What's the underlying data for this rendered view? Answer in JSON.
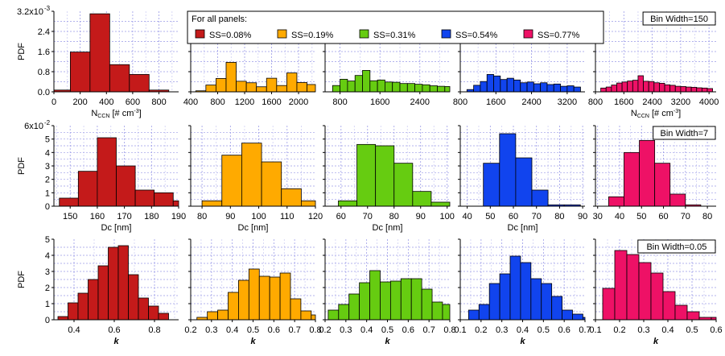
{
  "legend": {
    "title": "For all panels:",
    "items": [
      {
        "label": "SS=0.08%",
        "color": "#c41a1a"
      },
      {
        "label": "SS=0.19%",
        "color": "#ffaa00"
      },
      {
        "label": "SS=0.31%",
        "color": "#66cc11"
      },
      {
        "label": "SS=0.54%",
        "color": "#1144ee"
      },
      {
        "label": "SS=0.77%",
        "color": "#ee1166"
      }
    ]
  },
  "chart_data": [
    {
      "row": "Nccn",
      "type": "bar",
      "ylabel": "PDF",
      "ytick_labels": [
        "0.0",
        "0.8",
        "1.6",
        "2.4",
        "3.2x10"
      ],
      "y_exponent": "-3",
      "ylim": [
        0,
        0.0032
      ],
      "yticks": [
        0,
        0.0008,
        0.0016,
        0.0024,
        0.0032
      ],
      "annotation": "Bin Width=150",
      "annotation_panel": 4,
      "bin_width": 150,
      "xlabel": {
        "main": "N",
        "sub": "CCN",
        "unit": " [# cm",
        "sup": "-3",
        "close": "]"
      },
      "xlabel_panels": [
        0,
        4
      ],
      "panels": [
        {
          "series": "SS=0.08%",
          "color": "#c41a1a",
          "xlim": [
            0,
            950
          ],
          "xticks": [
            0,
            200,
            400,
            600,
            800
          ],
          "bin_start": -25,
          "values": [
            7e-05,
            0.00158,
            0.0031,
            0.00108,
            0.00069,
            7e-05
          ]
        },
        {
          "series": "SS=0.19%",
          "color": "#ffaa00",
          "xlim": [
            400,
            2250
          ],
          "xticks": [
            400,
            800,
            1200,
            1600,
            2000
          ],
          "bin_start": 475,
          "values": [
            4e-05,
            0.00027,
            0.00053,
            0.00117,
            0.00042,
            0.00036,
            0.0002,
            0.00054,
            0.00025,
            0.00075,
            0.00037,
            0.00029,
            0.00015,
            7e-05,
            4e-05
          ]
        },
        {
          "series": "SS=0.31%",
          "color": "#66cc11",
          "xlim": [
            500,
            3000
          ],
          "xticks": [
            800,
            1600,
            2400
          ],
          "bin_start": 650,
          "values": [
            0.00025,
            0.0005,
            0.00043,
            0.00065,
            0.00085,
            0.00044,
            0.00047,
            0.00039,
            0.00038,
            0.00033,
            0.00033,
            0.0003,
            0.00028,
            0.00024,
            0.00022,
            0.00021,
            0.00018
          ]
        },
        {
          "series": "SS=0.54%",
          "color": "#1144ee",
          "xlim": [
            800,
            3600
          ],
          "xticks": [
            800,
            1600,
            2400,
            3200
          ],
          "bin_start": 950,
          "values": [
            9e-05,
            0.00026,
            0.00041,
            0.00069,
            0.00063,
            0.00049,
            0.00054,
            0.00047,
            0.00036,
            0.00039,
            0.00032,
            0.00036,
            0.00029,
            0.00031,
            0.00022,
            0.00024,
            0.00019
          ]
        },
        {
          "series": "SS=0.77%",
          "color": "#ee1166",
          "xlim": [
            800,
            4200
          ],
          "xticks": [
            800,
            1600,
            2400,
            3200,
            4000
          ],
          "bin_start": 950,
          "values": [
            0.00015,
            0.00019,
            0.00027,
            0.00035,
            0.00039,
            0.00043,
            0.00046,
            0.00064,
            0.00042,
            0.00041,
            0.00036,
            0.00034,
            0.00028,
            0.00026,
            0.00022,
            0.00021,
            0.00019,
            0.00018,
            0.00016,
            0.00015,
            0.00013
          ]
        }
      ]
    },
    {
      "row": "Dc",
      "type": "bar",
      "ylabel": "PDF",
      "ytick_labels": [
        "0",
        "1",
        "2",
        "3",
        "4",
        "5",
        "6x10"
      ],
      "y_exponent": "-2",
      "ylim": [
        0,
        0.06
      ],
      "yticks": [
        0,
        0.01,
        0.02,
        0.03,
        0.04,
        0.05,
        0.06
      ],
      "annotation": "Bin Width=7",
      "annotation_panel": 4,
      "bin_width": 7,
      "xlabel": {
        "main": "Dc [nm]"
      },
      "xlabel_panels": [
        0,
        1,
        2,
        3
      ],
      "panels": [
        {
          "series": "SS=0.08%",
          "color": "#c41a1a",
          "xlim": [
            144,
            190
          ],
          "xticks": [
            150,
            160,
            170,
            180,
            190
          ],
          "bin_start": 146,
          "values": [
            0.006,
            0.026,
            0.051,
            0.03,
            0.012,
            0.01,
            0.004
          ]
        },
        {
          "series": "SS=0.19%",
          "color": "#ffaa00",
          "xlim": [
            76,
            120
          ],
          "xticks": [
            80,
            90,
            100,
            110,
            120
          ],
          "bin_start": 80,
          "values": [
            0.004,
            0.038,
            0.047,
            0.033,
            0.013,
            0.004
          ]
        },
        {
          "series": "SS=0.31%",
          "color": "#66cc11",
          "xlim": [
            54,
            101
          ],
          "xticks": [
            60,
            70,
            80,
            90,
            100
          ],
          "bin_start": 59,
          "values": [
            0.004,
            0.046,
            0.045,
            0.032,
            0.011,
            0.003
          ]
        },
        {
          "series": "SS=0.54%",
          "color": "#1144ee",
          "xlim": [
            37,
            91
          ],
          "xticks": [
            40,
            50,
            60,
            70,
            80,
            90
          ],
          "bin_start": 47,
          "values": [
            0.032,
            0.054,
            0.036,
            0.012,
            0.001,
            0.001
          ]
        },
        {
          "series": "SS=0.77%",
          "color": "#ee1166",
          "xlim": [
            29,
            84
          ],
          "xticks": [
            30,
            40,
            50,
            60,
            70,
            80
          ],
          "bin_start": 35,
          "values": [
            0.007,
            0.04,
            0.049,
            0.032,
            0.009,
            0.001
          ]
        }
      ]
    },
    {
      "row": "kappa",
      "type": "bar",
      "ylabel": "PDF",
      "ytick_labels": [
        "0",
        "1",
        "2",
        "3",
        "4",
        "5"
      ],
      "y_exponent": "",
      "ylim": [
        0,
        5
      ],
      "yticks": [
        0,
        1,
        2,
        3,
        4,
        5
      ],
      "annotation": "Bin Width=0.05",
      "annotation_panel": 4,
      "bin_width": 0.05,
      "xlabel": {
        "main": "k"
      },
      "xlabel_panels": [
        0,
        1,
        2,
        3,
        4
      ],
      "panels": [
        {
          "series": "SS=0.08%",
          "color": "#c41a1a",
          "xlim": [
            0.3,
            0.92
          ],
          "xticks": [
            0.4,
            0.6,
            0.8
          ],
          "bin_start": 0.32,
          "values": [
            0.2,
            1.05,
            1.65,
            2.5,
            3.35,
            4.5,
            4.6,
            2.8,
            1.35,
            0.85,
            0.4
          ]
        },
        {
          "series": "SS=0.19%",
          "color": "#ffaa00",
          "xlim": [
            0.2,
            0.8
          ],
          "xticks": [
            0.2,
            0.3,
            0.4,
            0.5,
            0.6,
            0.7,
            0.8
          ],
          "bin_start": 0.23,
          "values": [
            0.15,
            0.5,
            0.6,
            1.7,
            2.45,
            3.15,
            2.7,
            2.65,
            2.9,
            1.3,
            0.55,
            0.3
          ]
        },
        {
          "series": "SS=0.31%",
          "color": "#66cc11",
          "xlim": [
            0.2,
            0.8
          ],
          "xticks": [
            0.2,
            0.3,
            0.4,
            0.5,
            0.6,
            0.7,
            0.8
          ],
          "bin_start": 0.215,
          "values": [
            0.6,
            0.95,
            1.6,
            2.3,
            3.05,
            2.35,
            2.4,
            2.55,
            2.55,
            1.9,
            1.1,
            0.95,
            0.4,
            0.2
          ]
        },
        {
          "series": "SS=0.54%",
          "color": "#1144ee",
          "xlim": [
            0.1,
            0.7
          ],
          "xticks": [
            0.1,
            0.2,
            0.3,
            0.4,
            0.5,
            0.6,
            0.7
          ],
          "bin_start": 0.14,
          "values": [
            0.6,
            0.95,
            2.25,
            2.85,
            3.95,
            3.55,
            2.55,
            2.25,
            1.45,
            0.6,
            0.35,
            0.15
          ]
        },
        {
          "series": "SS=0.77%",
          "color": "#ee1166",
          "xlim": [
            0.1,
            0.6
          ],
          "xticks": [
            0.1,
            0.2,
            0.3,
            0.4,
            0.5,
            0.6
          ],
          "bin_start": 0.13,
          "values": [
            1.95,
            4.3,
            4.05,
            3.55,
            2.9,
            1.75,
            0.9,
            0.5,
            0.15,
            0.15
          ]
        }
      ]
    }
  ]
}
